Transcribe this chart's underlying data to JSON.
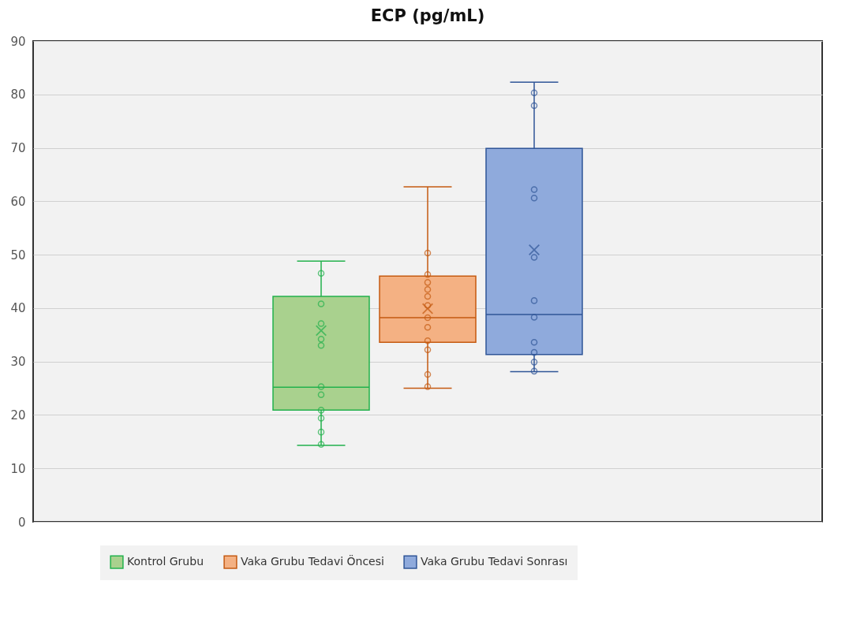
{
  "chart_data": {
    "type": "box",
    "title": "ECP (pg/mL)",
    "categories": [
      null
    ],
    "ylim": [
      0,
      90
    ],
    "yticks": [
      0,
      10,
      20,
      30,
      40,
      50,
      60,
      70,
      80,
      90
    ],
    "grid": "y",
    "legend": "bottom",
    "series": [
      {
        "name": "Kontrol Grubu",
        "color": "#a9d18e",
        "boxes": [
          {
            "low": 14.3,
            "q1": 20.9,
            "median": 25.2,
            "q3": 42.2,
            "high": 48.8,
            "mean": 35.8
          }
        ]
      },
      {
        "name": "Vaka Grubu Tedavi Öncesi",
        "color": "#f4b183",
        "boxes": [
          {
            "low": 25.0,
            "q1": 33.6,
            "median": 38.2,
            "q3": 46.0,
            "high": 62.7,
            "mean": 39.9
          }
        ]
      },
      {
        "name": "Vaka Grubu Tedavi Sonrası",
        "color": "#8faadc",
        "boxes": [
          {
            "low": 28.1,
            "q1": 31.3,
            "median": 38.8,
            "q3": 69.9,
            "high": 82.3,
            "mean": 50.9
          }
        ]
      },
      {
        "type": "scatter",
        "color": "#22b14c",
        "marker": "circle",
        "x": [
          null,
          null,
          null,
          null,
          null,
          null,
          null,
          null,
          null,
          null,
          null
        ],
        "values": [
          46.5,
          40.8,
          37.1,
          34.2,
          33.0,
          25.3,
          23.8,
          20.9,
          19.4,
          16.8,
          14.5
        ]
      },
      {
        "type": "scatter",
        "color": "#c55a11",
        "marker": "circle",
        "x": [
          null,
          null,
          null,
          null,
          null,
          null,
          null,
          null,
          null,
          null,
          null,
          null
        ],
        "values": [
          50.3,
          46.3,
          44.8,
          43.5,
          42.2,
          40.5,
          38.2,
          36.4,
          33.9,
          32.2,
          27.6,
          25.3
        ]
      },
      {
        "type": "scatter",
        "color": "#2f5597",
        "marker": "circle",
        "x": [
          null,
          null,
          null,
          null,
          null,
          null,
          null,
          null,
          null,
          null,
          null
        ],
        "values": [
          80.3,
          77.9,
          62.2,
          60.6,
          49.5,
          41.4,
          38.3,
          33.6,
          31.7,
          29.9,
          28.2
        ]
      }
    ]
  }
}
